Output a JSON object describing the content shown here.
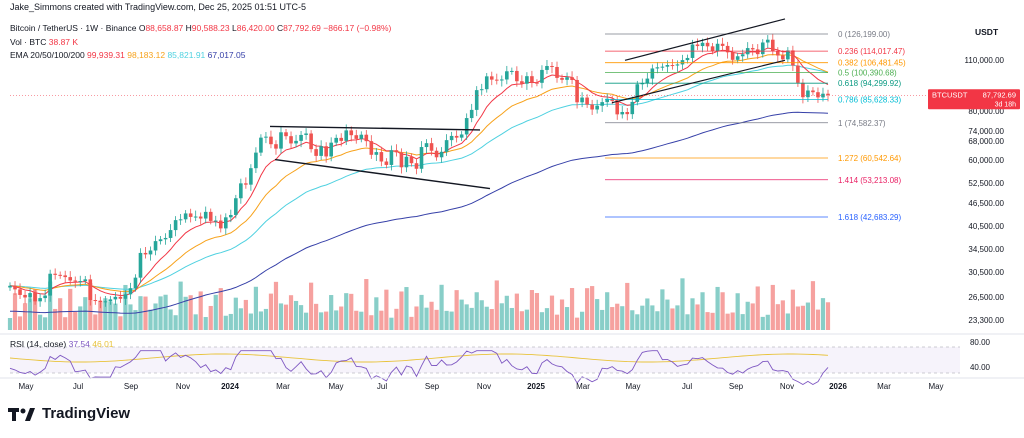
{
  "header": {
    "credit": "Jake_Simmons created with TradingView.com, Dec 25, 2025 01:51 UTC-5",
    "symbol": "Bitcoin / TetherUS · 1W · Binance",
    "ohlc": {
      "o_label": "O",
      "o": "88,658.87",
      "h_label": "H",
      "h": "90,588.23",
      "l_label": "L",
      "l": "86,420.00",
      "c_label": "C",
      "c": "87,792.69",
      "change": "−866.17 (−0.98%)"
    },
    "vol": {
      "label": "Vol · BTC",
      "value": "38.87 K"
    },
    "ema": {
      "label": "EMA 20/50/100/200",
      "v20": "99,939.31",
      "v50": "98,183.12",
      "v100": "85,821.91",
      "v200": "67,017.05"
    },
    "rsi": {
      "label": "RSI (14, close)",
      "value": "37.54",
      "ma": "46.01"
    }
  },
  "axis": {
    "currency": "USDT",
    "price_ticks": [
      "110,000.00",
      "80,000.00",
      "74,000.00",
      "68,000.00",
      "60,000.00",
      "52,500.00",
      "46,500.00",
      "40,500.00",
      "34,500.00",
      "30,500.00",
      "26,500.00",
      "23,300.00"
    ],
    "rsi_ticks": [
      "80.00",
      "40.00"
    ],
    "time_ticks": [
      "May",
      "Jul",
      "Sep",
      "Nov",
      "2024",
      "Mar",
      "May",
      "Jul",
      "Sep",
      "Nov",
      "2025",
      "Mar",
      "May",
      "Jul",
      "Sep",
      "Nov",
      "2026",
      "Mar",
      "May"
    ],
    "last_price_label": "BTCUSDT",
    "last_price": "87,792.69",
    "countdown": "3d 18h"
  },
  "fib_levels": [
    {
      "label": "0 (126,199.00)",
      "color": "#787b86"
    },
    {
      "label": "0.236 (114,017.47)",
      "color": "#f23645"
    },
    {
      "label": "0.382 (106,481.45)",
      "color": "#ff9800"
    },
    {
      "label": "0.5 (100,390.68)",
      "color": "#4caf50"
    },
    {
      "label": "0.618 (94,299.92)",
      "color": "#089981"
    },
    {
      "label": "0.786 (85,628.33)",
      "color": "#00bcd4"
    },
    {
      "label": "1 (74,582.37)",
      "color": "#787b86"
    },
    {
      "label": "1.272 (60,542.64)",
      "color": "#ff9800"
    },
    {
      "label": "1.414 (53,213.08)",
      "color": "#e91e63"
    },
    {
      "label": "1.618 (42,683.29)",
      "color": "#2962ff"
    }
  ],
  "colors": {
    "up": "#26a69a",
    "down": "#ef5350",
    "ema20": "#f23645",
    "ema50": "#f7a21b",
    "ema100": "#4fd1e0",
    "ema200": "#3640a8",
    "rsi": "#7e57c2",
    "rsi_ma": "#e8c33b"
  },
  "branding": {
    "name": "TradingView"
  },
  "chart_data": {
    "type": "candlestick",
    "interval": "1W",
    "scale": "log",
    "x_range": [
      "2023-04-24",
      "2025-12-22"
    ],
    "y_range": [
      21500,
      140000
    ],
    "series": [
      {
        "name": "BTCUSDT",
        "kind": "ohlc",
        "approx_weekly_close": [
          28400,
          27800,
          26900,
          26500,
          27200,
          25900,
          26400,
          26800,
          30500,
          30300,
          30200,
          29900,
          29300,
          29100,
          29200,
          29500,
          26100,
          26000,
          25800,
          25900,
          26200,
          26600,
          26300,
          27000,
          28000,
          29800,
          34500,
          34200,
          35000,
          37000,
          37400,
          37700,
          39500,
          41900,
          42100,
          43600,
          42700,
          42800,
          42300,
          44000,
          41700,
          41800,
          39900,
          42600,
          43200,
          47700,
          52100,
          51700,
          57000,
          62500,
          68300,
          68700,
          65700,
          64000,
          70500,
          68900,
          66000,
          67000,
          69400,
          70000,
          63800,
          61300,
          64900,
          61100,
          66300,
          68200,
          67000,
          71300,
          69300,
          67800,
          69500,
          66900,
          61700,
          62700,
          59300,
          58100,
          63400,
          62600,
          57300,
          61000,
          58700,
          56800,
          64600,
          66100,
          63200,
          60800,
          62800,
          67300,
          69000,
          68300,
          69600,
          76700,
          80500,
          90500,
          91000,
          98200,
          96300,
          95900,
          96400,
          101200,
          101400,
          95400,
          94000,
          98300,
          94600,
          94500,
          102000,
          104400,
          103800,
          97300,
          96200,
          97700,
          96100,
          84200,
          86600,
          83100,
          80700,
          82500,
          84300,
          86000,
          84900,
          78400,
          79500,
          78500,
          84400,
          93700,
          94300,
          96900,
          102900,
          103600,
          104000,
          105000,
          104700,
          105400,
          108100,
          109500,
          118600,
          117500,
          119800,
          117300,
          114100,
          119100,
          117600,
          113200,
          108300,
          110600,
          111900,
          116100,
          115200,
          112000,
          120000,
          122000,
          114000,
          111100,
          108600,
          114500,
          104700,
          94500,
          86800,
          90300,
          89400,
          86700,
          88600,
          87800
        ]
      },
      {
        "name": "EMA 20",
        "values": "overlay"
      },
      {
        "name": "EMA 50",
        "values": "overlay"
      },
      {
        "name": "EMA 100",
        "values": "overlay"
      },
      {
        "name": "EMA 200",
        "values": "overlay"
      }
    ],
    "annotations": [
      "downward channel 2024",
      "rising channel 2025",
      "Fibonacci retracement 126,199 to 74,582"
    ]
  }
}
